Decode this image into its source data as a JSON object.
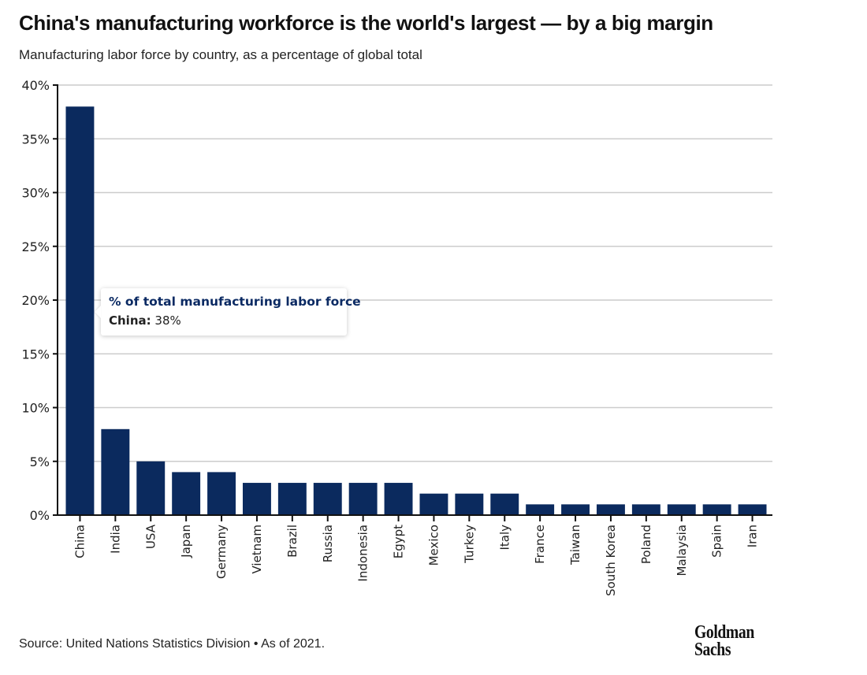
{
  "header": {
    "title": "China's manufacturing workforce is the world's largest — by a big margin",
    "subtitle": "Manufacturing labor force by country, as a percentage of global total"
  },
  "tooltip": {
    "title": "% of total manufacturing labor force",
    "key": "China:",
    "value": "38%"
  },
  "footer": {
    "source": "Source: United Nations Statistics Division • As of 2021.",
    "logo_line1": "Goldman",
    "logo_line2": "Sachs"
  },
  "colors": {
    "bar": "#0b2a5e",
    "grid": "#cccccc",
    "axis": "#111111",
    "tooltip_title": "#0b2a63"
  },
  "chart_data": {
    "type": "bar",
    "title": "China's manufacturing workforce is the world's largest — by a big margin",
    "subtitle": "Manufacturing labor force by country, as a percentage of global total",
    "xlabel": "",
    "ylabel": "",
    "categories": [
      "China",
      "India",
      "USA",
      "Japan",
      "Germany",
      "Vietnam",
      "Brazil",
      "Russia",
      "Indonesia",
      "Egypt",
      "Mexico",
      "Turkey",
      "Italy",
      "France",
      "Taiwan",
      "South Korea",
      "Poland",
      "Malaysia",
      "Spain",
      "Iran"
    ],
    "series": [
      {
        "name": "% of total manufacturing labor force",
        "values": [
          38,
          8,
          5,
          4,
          4,
          3,
          3,
          3,
          3,
          3,
          2,
          2,
          2,
          1,
          1,
          1,
          1,
          1,
          1,
          1
        ]
      }
    ],
    "ylim": [
      0,
      40
    ],
    "yticks": [
      0,
      5,
      10,
      15,
      20,
      25,
      30,
      35,
      40
    ],
    "ytick_labels": [
      "0%",
      "5%",
      "10%",
      "15%",
      "20%",
      "25%",
      "30%",
      "35%",
      "40%"
    ],
    "grid": true,
    "legend": "none",
    "annotations": [
      "Tooltip on China: % of total manufacturing labor force — China: 38%"
    ],
    "source": "Source: United Nations Statistics Division • As of 2021."
  }
}
